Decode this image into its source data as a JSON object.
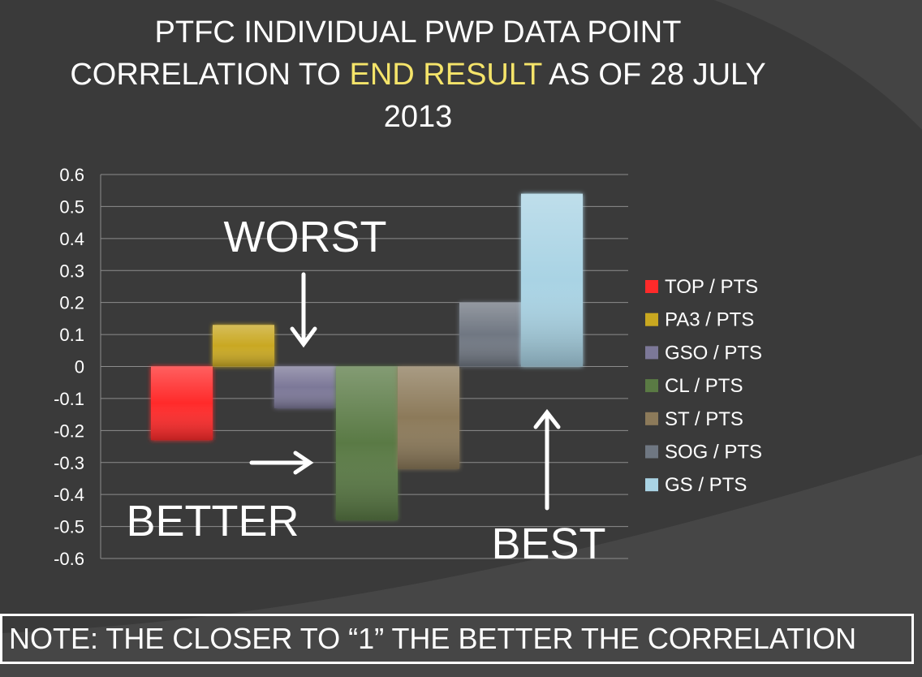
{
  "title": {
    "part1": "PTFC INDIVIDUAL PWP DATA POINT CORRELATION TO ",
    "highlight": "END RESULT",
    "part2": " AS OF 28 JULY 2013"
  },
  "annotations": {
    "worst": "WORST",
    "better": "BETTER",
    "best": "BEST"
  },
  "note": "NOTE: THE CLOSER TO “1” THE BETTER THE CORRELATION",
  "colors": {
    "background": "#3a3a3a",
    "title_highlight": "#f5e46a"
  },
  "chart_data": {
    "type": "bar",
    "title": "PTFC INDIVIDUAL PWP DATA POINT CORRELATION TO END RESULT AS OF 28 JULY 2013",
    "xlabel": "",
    "ylabel": "",
    "ylim": [
      -0.6,
      0.6
    ],
    "y_ticks": [
      "0.6",
      "0.5",
      "0.4",
      "0.3",
      "0.2",
      "0.1",
      "0",
      "-0.1",
      "-0.2",
      "-0.3",
      "-0.4",
      "-0.5",
      "-0.6"
    ],
    "grid": true,
    "legend_position": "right",
    "series": [
      {
        "name": "TOP / PTS",
        "value": -0.23,
        "color": "#ff2a2a"
      },
      {
        "name": "PA3 / PTS",
        "value": 0.13,
        "color": "#c9a820"
      },
      {
        "name": "GSO / PTS",
        "value": -0.13,
        "color": "#7c7898"
      },
      {
        "name": "CL / PTS",
        "value": -0.48,
        "color": "#5a7a44"
      },
      {
        "name": "ST / PTS",
        "value": -0.32,
        "color": "#8c7a5a"
      },
      {
        "name": "SOG / PTS",
        "value": 0.2,
        "color": "#6f7782"
      },
      {
        "name": "GS / PTS",
        "value": 0.54,
        "color": "#a9d3e4"
      }
    ]
  }
}
